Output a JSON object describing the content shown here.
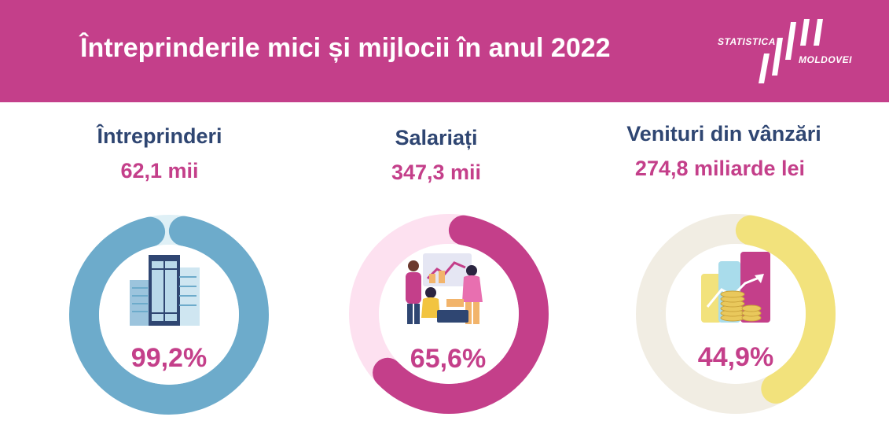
{
  "header": {
    "title": "Întreprinderile mici și mijlocii în anul 2022",
    "logo_line1": "STATISTICA",
    "logo_line2": "MOLDOVEI",
    "background_color": "#c43f8a"
  },
  "colors": {
    "title_text": "#2f4672",
    "accent_text": "#c43f8a"
  },
  "chart_data": [
    {
      "type": "pie",
      "title": "Întreprinderi",
      "subtitle": "62,1 mii",
      "value": 99.2,
      "value_label": "99,2%",
      "fill_color": "#6dabcb",
      "track_color": "#dff0f6",
      "icon": "office-buildings-icon"
    },
    {
      "type": "pie",
      "title": "Salariați",
      "subtitle": "347,3 mii",
      "value": 65.6,
      "value_label": "65,6%",
      "fill_color": "#c43f8a",
      "track_color": "#fde1f0",
      "icon": "office-team-icon"
    },
    {
      "type": "pie",
      "title": "Venituri din vânzări",
      "subtitle": "274,8 miliarde lei",
      "value": 44.9,
      "value_label": "44,9%",
      "fill_color": "#f2e27c",
      "track_color": "#f1ede3",
      "icon": "coins-growth-chart-icon"
    }
  ]
}
